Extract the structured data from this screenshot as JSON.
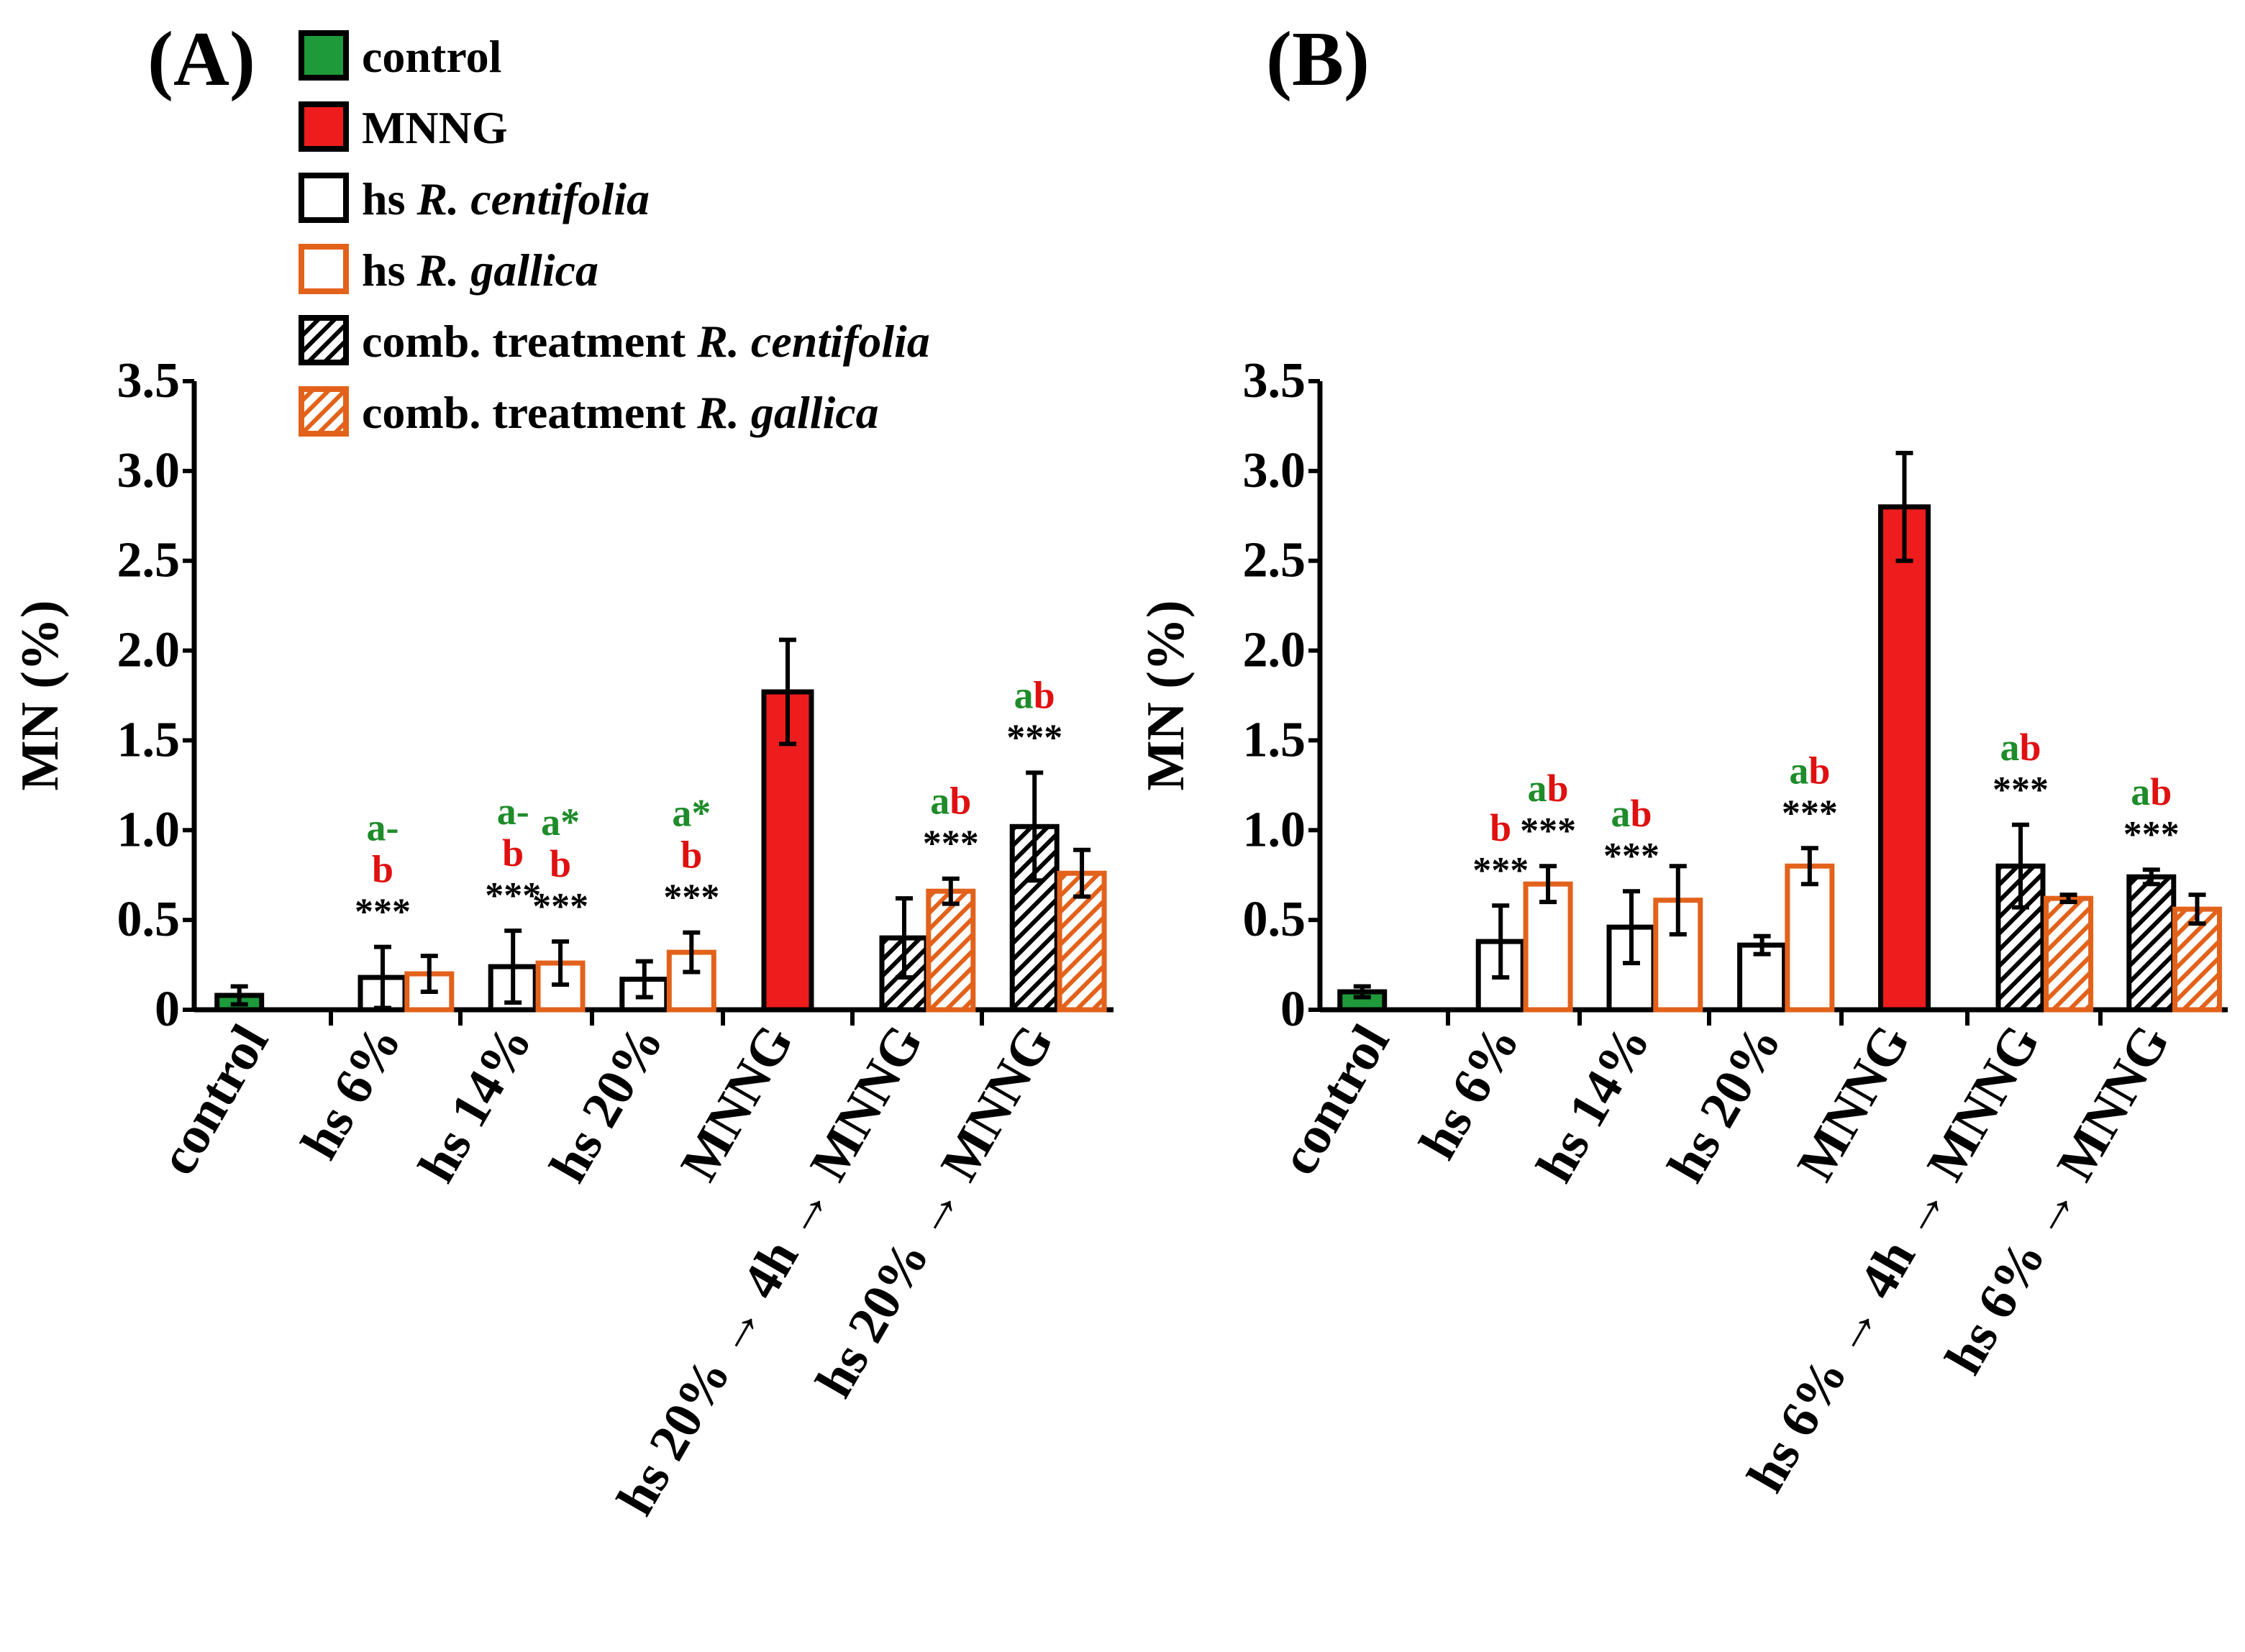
{
  "legend": {
    "items": [
      {
        "label_parts": [
          {
            "text": "control",
            "italic": false
          }
        ],
        "swatch": "control"
      },
      {
        "label_parts": [
          {
            "text": "MNNG",
            "italic": false
          }
        ],
        "swatch": "mnng"
      },
      {
        "label_parts": [
          {
            "text": "hs ",
            "italic": false
          },
          {
            "text": "R. centifolia",
            "italic": true
          }
        ],
        "swatch": "hs_centifolia"
      },
      {
        "label_parts": [
          {
            "text": "hs ",
            "italic": false
          },
          {
            "text": "R. gallica",
            "italic": true
          }
        ],
        "swatch": "hs_gallica"
      },
      {
        "label_parts": [
          {
            "text": "comb. treatment ",
            "italic": false
          },
          {
            "text": "R. centifolia",
            "italic": true
          }
        ],
        "swatch": "comb_centifolia"
      },
      {
        "label_parts": [
          {
            "text": "comb. treatment ",
            "italic": false
          },
          {
            "text": "R. gallica",
            "italic": true
          }
        ],
        "swatch": "comb_gallica"
      }
    ]
  },
  "colors": {
    "control_fill": "#1e9a3a",
    "mnng_fill": "#ee1c1c",
    "black": "#000000",
    "orange": "#e2621b",
    "sig_green": "#1e8c2a",
    "sig_red": "#e01010"
  },
  "chart_data": [
    {
      "panel_label": "(A)",
      "type": "bar",
      "ylabel": "MN (%)",
      "ylim": [
        0,
        3.5
      ],
      "yticks": [
        "0",
        "0.5",
        "1.0",
        "1.5",
        "2.0",
        "2.5",
        "3.0",
        "3.5"
      ],
      "groups": [
        {
          "label": "control",
          "bars": [
            {
              "style": "control",
              "value": 0.08,
              "err": 0.05,
              "sig": []
            }
          ]
        },
        {
          "label": "hs 6%",
          "bars": [
            {
              "style": "hs_centifolia",
              "value": 0.18,
              "err": 0.17,
              "sig": [
                {
                  "text": "a-",
                  "color": "green"
                },
                {
                  "text": "b",
                  "color": "red"
                },
                {
                  "text": "***",
                  "color": "black"
                }
              ]
            },
            {
              "style": "hs_gallica",
              "value": 0.2,
              "err": 0.1,
              "sig": []
            }
          ]
        },
        {
          "label": "hs 14%",
          "bars": [
            {
              "style": "hs_centifolia",
              "value": 0.24,
              "err": 0.2,
              "sig": [
                {
                  "text": "a-",
                  "color": "green"
                },
                {
                  "text": "b",
                  "color": "red"
                },
                {
                  "text": "***",
                  "color": "black"
                }
              ]
            },
            {
              "style": "hs_gallica",
              "value": 0.26,
              "err": 0.12,
              "sig": [
                {
                  "text": "a*",
                  "color": "green"
                },
                {
                  "text": "b",
                  "color": "red"
                },
                {
                  "text": "***",
                  "color": "black"
                }
              ]
            }
          ]
        },
        {
          "label": "hs 20%",
          "bars": [
            {
              "style": "hs_centifolia",
              "value": 0.17,
              "err": 0.1,
              "sig": []
            },
            {
              "style": "hs_gallica",
              "value": 0.32,
              "err": 0.11,
              "sig": [
                {
                  "text": "a*",
                  "color": "green"
                },
                {
                  "text": "b",
                  "color": "red"
                },
                {
                  "text": "***",
                  "color": "black"
                }
              ]
            }
          ]
        },
        {
          "label": "MNNG",
          "bars": [
            {
              "style": "mnng",
              "value": 1.77,
              "err": 0.29,
              "sig": []
            }
          ]
        },
        {
          "label": "hs 20% → 4h → MNNG",
          "bars": [
            {
              "style": "comb_centifolia",
              "value": 0.4,
              "err": 0.22,
              "sig": []
            },
            {
              "style": "comb_gallica",
              "value": 0.66,
              "err": 0.07,
              "sig": [
                {
                  "text": "ab",
                  "color": "green_red"
                },
                {
                  "text": "***",
                  "color": "black"
                }
              ]
            }
          ]
        },
        {
          "label": "hs 20% → MNNG",
          "bars": [
            {
              "style": "comb_centifolia",
              "value": 1.02,
              "err": 0.3,
              "sig": [
                {
                  "text": "ab",
                  "color": "green_red"
                },
                {
                  "text": "***",
                  "color": "black"
                }
              ]
            },
            {
              "style": "comb_gallica",
              "value": 0.76,
              "err": 0.13,
              "sig": []
            }
          ]
        }
      ]
    },
    {
      "panel_label": "(B)",
      "type": "bar",
      "ylabel": "MN (%)",
      "ylim": [
        0,
        3.5
      ],
      "yticks": [
        "0",
        "0.5",
        "1.0",
        "1.5",
        "2.0",
        "2.5",
        "3.0",
        "3.5"
      ],
      "groups": [
        {
          "label": "control",
          "bars": [
            {
              "style": "control",
              "value": 0.1,
              "err": 0.03,
              "sig": []
            }
          ]
        },
        {
          "label": "hs 6%",
          "bars": [
            {
              "style": "hs_centifolia",
              "value": 0.38,
              "err": 0.2,
              "sig": [
                {
                  "text": "b",
                  "color": "red"
                },
                {
                  "text": "***",
                  "color": "black"
                }
              ]
            },
            {
              "style": "hs_gallica",
              "value": 0.7,
              "err": 0.1,
              "sig": [
                {
                  "text": "ab",
                  "color": "green_red"
                },
                {
                  "text": "***",
                  "color": "black"
                }
              ]
            }
          ]
        },
        {
          "label": "hs 14%",
          "bars": [
            {
              "style": "hs_centifolia",
              "value": 0.46,
              "err": 0.2,
              "sig": [
                {
                  "text": "ab",
                  "color": "green_red"
                },
                {
                  "text": "***",
                  "color": "black"
                }
              ]
            },
            {
              "style": "hs_gallica",
              "value": 0.61,
              "err": 0.19,
              "sig": []
            }
          ]
        },
        {
          "label": "hs 20%",
          "bars": [
            {
              "style": "hs_centifolia",
              "value": 0.36,
              "err": 0.05,
              "sig": []
            },
            {
              "style": "hs_gallica",
              "value": 0.8,
              "err": 0.1,
              "sig": [
                {
                  "text": "ab",
                  "color": "green_red"
                },
                {
                  "text": "***",
                  "color": "black"
                }
              ]
            }
          ]
        },
        {
          "label": "MNNG",
          "bars": [
            {
              "style": "mnng",
              "value": 2.8,
              "err": 0.3,
              "sig": []
            }
          ]
        },
        {
          "label": "hs 6% → 4h → MNNG",
          "bars": [
            {
              "style": "comb_centifolia",
              "value": 0.8,
              "err": 0.23,
              "sig": [
                {
                  "text": "ab",
                  "color": "green_red"
                },
                {
                  "text": "***",
                  "color": "black"
                }
              ]
            },
            {
              "style": "comb_gallica",
              "value": 0.62,
              "err": 0.02,
              "sig": []
            }
          ]
        },
        {
          "label": "hs 6% → MNNG",
          "bars": [
            {
              "style": "comb_centifolia",
              "value": 0.74,
              "err": 0.04,
              "sig": [
                {
                  "text": "ab",
                  "color": "green_red"
                },
                {
                  "text": "***",
                  "color": "black"
                }
              ]
            },
            {
              "style": "comb_gallica",
              "value": 0.56,
              "err": 0.08,
              "sig": []
            }
          ]
        }
      ]
    }
  ]
}
